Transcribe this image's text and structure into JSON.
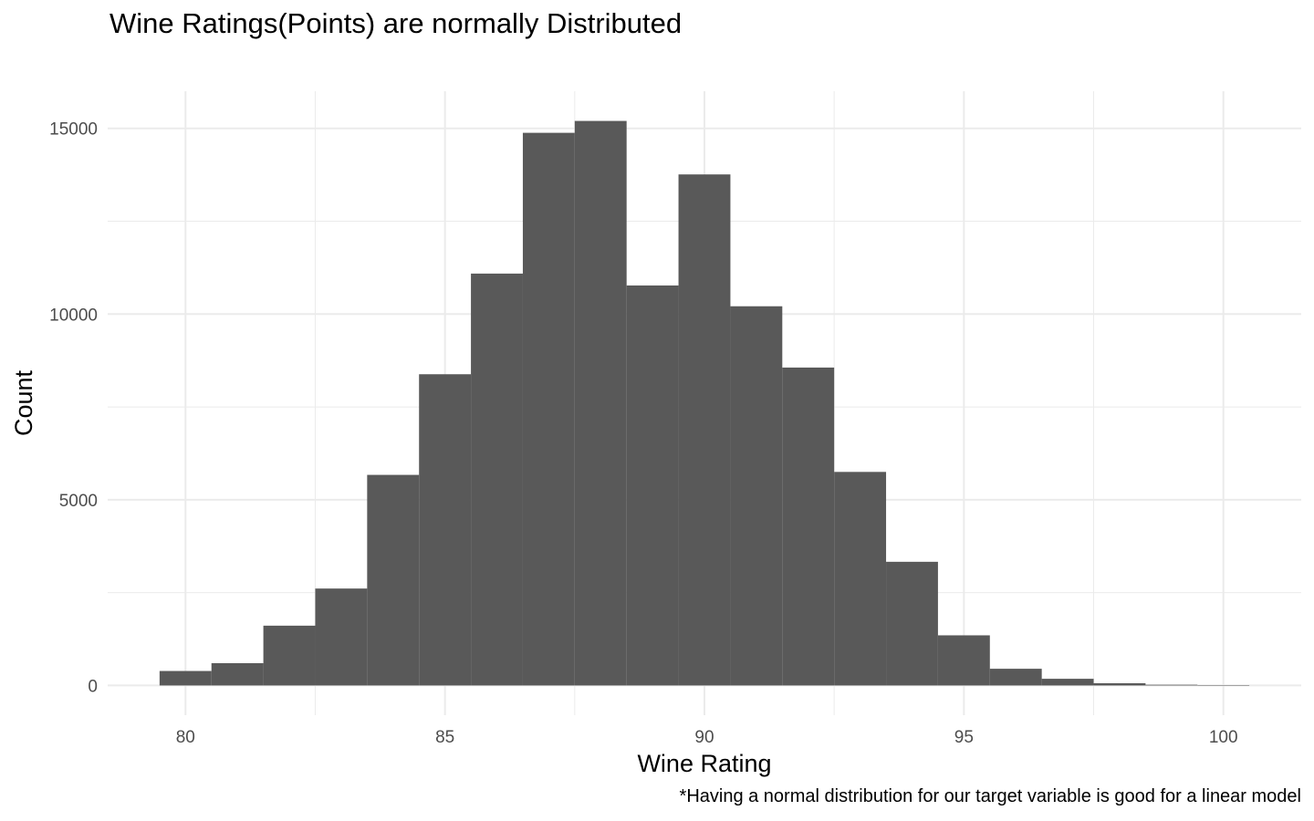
{
  "chart_data": {
    "type": "bar",
    "title": "Wine Ratings(Points) are normally Distributed",
    "xlabel": "Wine Rating",
    "ylabel": "Count",
    "caption": "*Having a normal distribution for our target variable is good for a linear model",
    "bin_width": 1,
    "x": [
      80,
      81,
      82,
      83,
      84,
      85,
      86,
      87,
      88,
      89,
      90,
      91,
      92,
      93,
      94,
      95,
      96,
      97,
      98,
      99,
      100
    ],
    "values": [
      390,
      600,
      1610,
      2610,
      5670,
      8380,
      11090,
      14880,
      15200,
      10770,
      13760,
      10210,
      8560,
      5750,
      3330,
      1350,
      450,
      180,
      60,
      20,
      10
    ],
    "xlim": [
      78.5,
      101.5
    ],
    "ylim": [
      -800,
      16000
    ],
    "x_ticks": [
      80,
      85,
      90,
      95,
      100
    ],
    "x_tick_labels": [
      "80",
      "85",
      "90",
      "95",
      "100"
    ],
    "y_ticks": [
      0,
      5000,
      10000,
      15000
    ],
    "y_tick_labels": [
      "0",
      "5000",
      "10000",
      "15000"
    ],
    "grid": true,
    "bar_color": "#595959",
    "grid_color": "#ebebeb"
  }
}
